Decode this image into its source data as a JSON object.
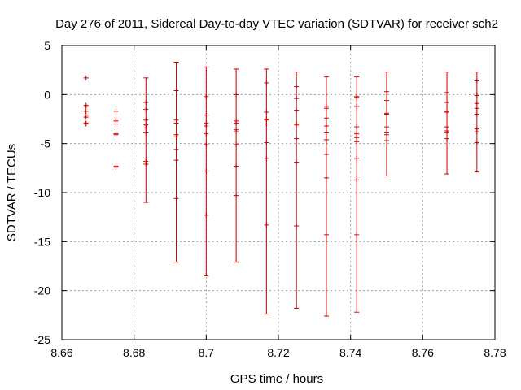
{
  "chart_data": {
    "type": "scatter",
    "title": "Day 276 of 2011, Sidereal Day-to-day VTEC variation (SDTVAR) for receiver sch2",
    "xlabel": "GPS time / hours",
    "ylabel": "SDTVAR / TECUs",
    "xlim": [
      8.66,
      8.78
    ],
    "ylim": [
      -25,
      5
    ],
    "xticks": [
      8.66,
      8.68,
      8.7,
      8.72,
      8.74,
      8.76,
      8.78
    ],
    "yticks": [
      -25,
      -20,
      -15,
      -10,
      -5,
      0,
      5
    ],
    "xtick_labels": [
      "8.66",
      "8.68",
      "8.7",
      "8.72",
      "8.74",
      "8.76",
      "8.78"
    ],
    "ytick_labels": [
      "-25",
      "-20",
      "-15",
      "-10",
      "-5",
      "0",
      "5"
    ],
    "grid": true,
    "color": "#cc0000",
    "series": [
      {
        "x": 8.6667,
        "values": [
          1.7,
          -1.1,
          -1.2,
          -1.7,
          -2.1,
          -2.3,
          -2.9,
          -3.0
        ]
      },
      {
        "x": 8.675,
        "values": [
          -1.7,
          -2.5,
          -2.7,
          -3.0,
          -4.0,
          -4.1,
          -7.3,
          -7.4
        ]
      },
      {
        "x": 8.6833,
        "ymin": -11.0,
        "ymax": 1.7,
        "values": [
          -0.8,
          -1.5,
          -2.6,
          -3.1,
          -3.4,
          -3.9,
          -6.8,
          -7.1
        ]
      },
      {
        "x": 8.6917,
        "ymin": -17.1,
        "ymax": 3.3,
        "values": [
          0.4,
          -2.6,
          -2.9,
          -4.1,
          -4.3,
          -5.6,
          -6.7,
          -10.6
        ]
      },
      {
        "x": 8.7,
        "ymin": -18.5,
        "ymax": 2.8,
        "values": [
          -0.2,
          -2.1,
          -2.9,
          -3.2,
          -4.0,
          -5.1,
          -7.8,
          -12.3
        ]
      },
      {
        "x": 8.7083,
        "ymin": -17.1,
        "ymax": 2.6,
        "values": [
          0.0,
          -2.7,
          -2.9,
          -3.6,
          -3.8,
          -5.1,
          -7.3,
          -10.3
        ]
      },
      {
        "x": 8.7167,
        "ymin": -22.4,
        "ymax": 2.6,
        "values": [
          1.2,
          -1.8,
          -2.5,
          -2.6,
          -3.0,
          -4.9,
          -6.5,
          -13.3
        ]
      },
      {
        "x": 8.725,
        "ymin": -21.8,
        "ymax": 2.3,
        "values": [
          0.8,
          -0.4,
          -1.6,
          -3.0,
          -3.1,
          -4.5,
          -6.9,
          -13.4
        ]
      },
      {
        "x": 8.7333,
        "ymin": -22.6,
        "ymax": 1.8,
        "values": [
          -1.2,
          -1.4,
          -2.4,
          -3.2,
          -3.9,
          -4.6,
          -6.1,
          -8.5,
          -14.3
        ]
      },
      {
        "x": 8.7417,
        "ymin": -22.2,
        "ymax": 1.8,
        "values": [
          -0.2,
          -0.3,
          -1.2,
          -3.3,
          -4.0,
          -4.4,
          -4.8,
          -6.5,
          -8.7,
          -14.3
        ]
      },
      {
        "x": 8.75,
        "ymin": -8.3,
        "ymax": 2.3,
        "values": [
          0.3,
          -0.6,
          -1.9,
          -2.0,
          -3.3,
          -3.9,
          -4.1,
          -4.7
        ]
      },
      {
        "x": 8.7667,
        "ymin": -8.1,
        "ymax": 2.3,
        "values": [
          0.2,
          -0.8,
          -1.7,
          -1.8,
          -3.3,
          -3.7,
          -3.9,
          -4.5
        ]
      },
      {
        "x": 8.775,
        "ymin": -7.9,
        "ymax": 2.3,
        "values": [
          1.4,
          -0.1,
          -0.9,
          -1.4,
          -2.0,
          -3.5,
          -3.8,
          -4.9
        ]
      }
    ]
  }
}
